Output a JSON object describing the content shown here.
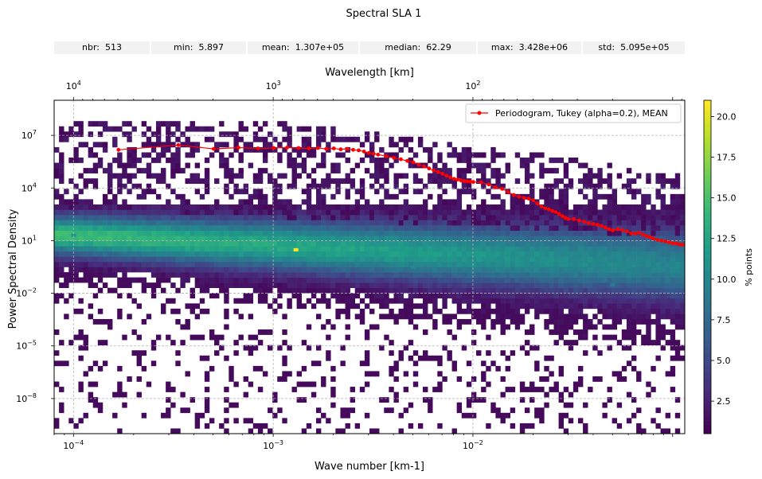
{
  "title": "Spectral SLA 1",
  "stats": [
    {
      "label": "nbr:",
      "value": "513"
    },
    {
      "label": "min:",
      "value": "5.897"
    },
    {
      "label": "mean:",
      "value": "1.307e+05"
    },
    {
      "label": "median:",
      "value": "62.29"
    },
    {
      "label": "max:",
      "value": "3.428e+06"
    },
    {
      "label": "std:",
      "value": "5.095e+05"
    }
  ],
  "chart_data": {
    "type": "heatmap",
    "title": "Spectral SLA 1",
    "xlabel": "Wave number [km-1]",
    "ylabel": "Power Spectral Density",
    "top_xlabel": "Wavelength [km]",
    "colorbar_label": "% points",
    "colormap": "viridis",
    "x_scale": "log",
    "y_scale": "log",
    "xlim": [
      8e-05,
      0.115
    ],
    "ylim": [
      1e-10,
      1000000000.0
    ],
    "clim": [
      0.5,
      21
    ],
    "x_ticks": [
      {
        "value": 0.0001,
        "label": "10",
        "exp": "−4"
      },
      {
        "value": 0.001,
        "label": "10",
        "exp": "−3"
      },
      {
        "value": 0.01,
        "label": "10",
        "exp": "−2"
      }
    ],
    "y_ticks": [
      {
        "value": 1e-08,
        "label": "10",
        "exp": "−8"
      },
      {
        "value": 1e-05,
        "label": "10",
        "exp": "−5"
      },
      {
        "value": 0.01,
        "label": "10",
        "exp": "−2"
      },
      {
        "value": 10,
        "label": "10",
        "exp": "1"
      },
      {
        "value": 10000,
        "label": "10",
        "exp": "4"
      },
      {
        "value": 10000000,
        "label": "10",
        "exp": "7"
      }
    ],
    "top_ticks": [
      {
        "value": 10000,
        "label": "10",
        "exp": "4"
      },
      {
        "value": 1000,
        "label": "10",
        "exp": "3"
      },
      {
        "value": 100,
        "label": "10",
        "exp": "2"
      }
    ],
    "colorbar_ticks": [
      {
        "value": 2.5,
        "label": "2.5"
      },
      {
        "value": 5.0,
        "label": "5.0"
      },
      {
        "value": 7.5,
        "label": "7.5"
      },
      {
        "value": 10.0,
        "label": "10.0"
      },
      {
        "value": 12.5,
        "label": "12.5"
      },
      {
        "value": 15.0,
        "label": "15.0"
      },
      {
        "value": 17.5,
        "label": "17.5"
      },
      {
        "value": 20.0,
        "label": "20.0"
      }
    ],
    "grid": true,
    "legend_position": "upper right",
    "series": [
      {
        "name": "Periodogram, Tukey (alpha=0.2), MEAN",
        "type": "line",
        "color": "#ff0000",
        "x": [
          0.000168,
          0.000335,
          0.000503,
          0.00067,
          0.000838,
          0.001005,
          0.001173,
          0.00134,
          0.001508,
          0.001675,
          0.001843,
          0.00201,
          0.002178,
          0.002345,
          0.002513,
          0.00268,
          0.002848,
          0.003015,
          0.003183,
          0.00335,
          0.003685,
          0.00402,
          0.004355,
          0.00469,
          0.005025,
          0.00536,
          0.005695,
          0.00603,
          0.006365,
          0.0067,
          0.007035,
          0.00737,
          0.007705,
          0.00804,
          0.008375,
          0.00871,
          0.009045,
          0.00938,
          0.009715,
          0.01005,
          0.011,
          0.012,
          0.013,
          0.014,
          0.015,
          0.016,
          0.017,
          0.018,
          0.019,
          0.02,
          0.021,
          0.022,
          0.023,
          0.024,
          0.025,
          0.026,
          0.027,
          0.028,
          0.029,
          0.03,
          0.032,
          0.034,
          0.036,
          0.038,
          0.04,
          0.042,
          0.044,
          0.046,
          0.048,
          0.05,
          0.053,
          0.056,
          0.059,
          0.062,
          0.065,
          0.068,
          0.071,
          0.074,
          0.077,
          0.08,
          0.084,
          0.088,
          0.092,
          0.096,
          0.1,
          0.104,
          0.108,
          0.112
        ],
        "y": [
          1500000,
          2800000,
          1700000,
          2000000,
          1800000,
          1900000,
          2000000,
          1900000,
          1800000,
          1900000,
          1700000,
          1800000,
          1600000,
          1700000,
          1500000,
          1400000,
          1200000,
          1000000,
          900000,
          800000,
          650000,
          520000,
          430000,
          350000,
          290000,
          210000,
          170000,
          130000,
          100000,
          80000,
          65000,
          50000,
          40000,
          33000,
          30000,
          27000,
          25000,
          24000,
          23000,
          22000,
          21000,
          16000,
          11000,
          9000,
          6000,
          4000,
          3200,
          2800,
          2500,
          2000,
          1300,
          900,
          700,
          600,
          500,
          420,
          330,
          250,
          200,
          170,
          170,
          140,
          120,
          100,
          90,
          80,
          70,
          55,
          45,
          38,
          45,
          40,
          34,
          26,
          25,
          28,
          22,
          18,
          16,
          13,
          11,
          10,
          9,
          8,
          7,
          7,
          6,
          5.9
        ]
      }
    ],
    "heatmap_description_points": [
      {
        "x": 0.0013,
        "y": 3,
        "value": 21
      },
      {
        "x": 0.0008,
        "y": 10,
        "value": 14
      },
      {
        "x": 0.0001,
        "y": 20,
        "value": 11
      },
      {
        "x": 0.005,
        "y": 0.3,
        "value": 10
      },
      {
        "x": 0.05,
        "y": 0.03,
        "value": 9
      }
    ]
  }
}
